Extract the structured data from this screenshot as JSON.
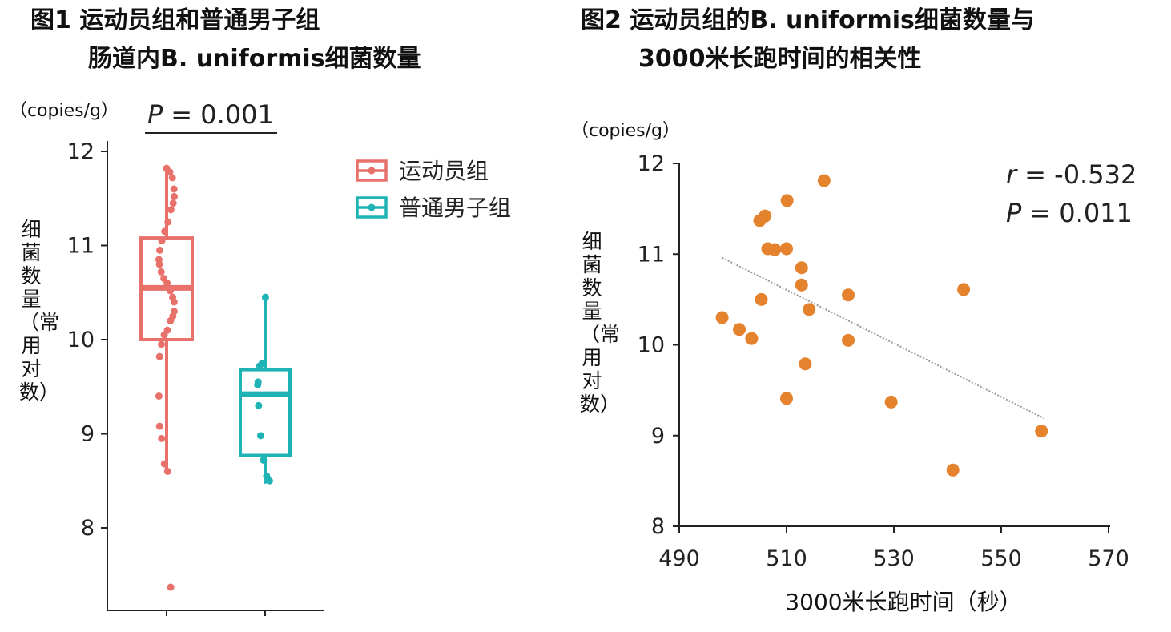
{
  "chart_data": [
    {
      "type": "box",
      "title_line1": "图1 运动员组和普通男子组",
      "title_line2": "肠道内B. uniformis细菌数量",
      "unit": "（copies/g）",
      "ylabel": "细菌数量（常用对数）",
      "ylim": [
        7.3,
        12.2
      ],
      "yticks": [
        "8",
        "9",
        "10",
        "11",
        "12"
      ],
      "p_prefix": "P",
      "p_text": "= 0.001",
      "legend": [
        {
          "name": "运动员组",
          "color": "#E8716B"
        },
        {
          "name": "普通男子组",
          "color": "#1FB3B6"
        }
      ],
      "groups": [
        {
          "name": "运动员组",
          "color": "#E8716B",
          "min": 8.6,
          "q1": 10.0,
          "median": 10.55,
          "q3": 11.08,
          "max": 11.82,
          "points": [
            11.82,
            11.78,
            11.72,
            11.6,
            11.52,
            11.45,
            11.38,
            11.25,
            11.15,
            11.05,
            10.95,
            10.85,
            10.8,
            10.72,
            10.65,
            10.6,
            10.52,
            10.45,
            10.4,
            10.3,
            10.25,
            10.2,
            10.1,
            10.05,
            9.95,
            9.82,
            9.4,
            9.08,
            8.95,
            8.68,
            8.6,
            7.37
          ]
        },
        {
          "name": "普通男子组",
          "color": "#1FB3B6",
          "min": 8.47,
          "q1": 8.77,
          "median": 9.42,
          "q3": 9.68,
          "max": 10.45,
          "points": [
            10.45,
            9.75,
            9.72,
            9.55,
            9.52,
            9.3,
            8.98,
            8.72,
            8.55,
            8.5
          ]
        }
      ]
    },
    {
      "type": "scatter",
      "title_line1": "图2 运动员组的B. uniformis细菌数量与",
      "title_line2": "3000米长跑时间的相关性",
      "unit": "（copies/g）",
      "ylabel": "细菌数量（常用对数）",
      "xlabel": "3000米长跑时间（秒）",
      "xlim": [
        490,
        570
      ],
      "ylim": [
        8,
        12
      ],
      "xticks": [
        "490",
        "510",
        "530",
        "550",
        "570"
      ],
      "yticks": [
        "8",
        "9",
        "10",
        "11",
        "12"
      ],
      "r_prefix": "r",
      "r_text": "= -0.532",
      "p_prefix": "P",
      "p_text": "= 0.011",
      "color": "#E5822E",
      "trendline": [
        [
          498,
          10.96
        ],
        [
          558,
          9.19
        ]
      ],
      "points": [
        [
          498,
          10.3
        ],
        [
          501.2,
          10.17
        ],
        [
          503.5,
          10.07
        ],
        [
          505,
          11.37
        ],
        [
          505.3,
          10.5
        ],
        [
          506,
          11.42
        ],
        [
          506.5,
          11.06
        ],
        [
          507.8,
          11.05
        ],
        [
          510,
          11.06
        ],
        [
          510.1,
          11.59
        ],
        [
          510,
          9.41
        ],
        [
          512.8,
          10.85
        ],
        [
          512.8,
          10.66
        ],
        [
          513.5,
          9.79
        ],
        [
          514.2,
          10.39
        ],
        [
          517,
          11.81
        ],
        [
          521.5,
          10.55
        ],
        [
          521.5,
          10.05
        ],
        [
          529.5,
          9.37
        ],
        [
          541,
          8.62
        ],
        [
          543,
          10.61
        ],
        [
          557.5,
          9.05
        ]
      ]
    }
  ]
}
